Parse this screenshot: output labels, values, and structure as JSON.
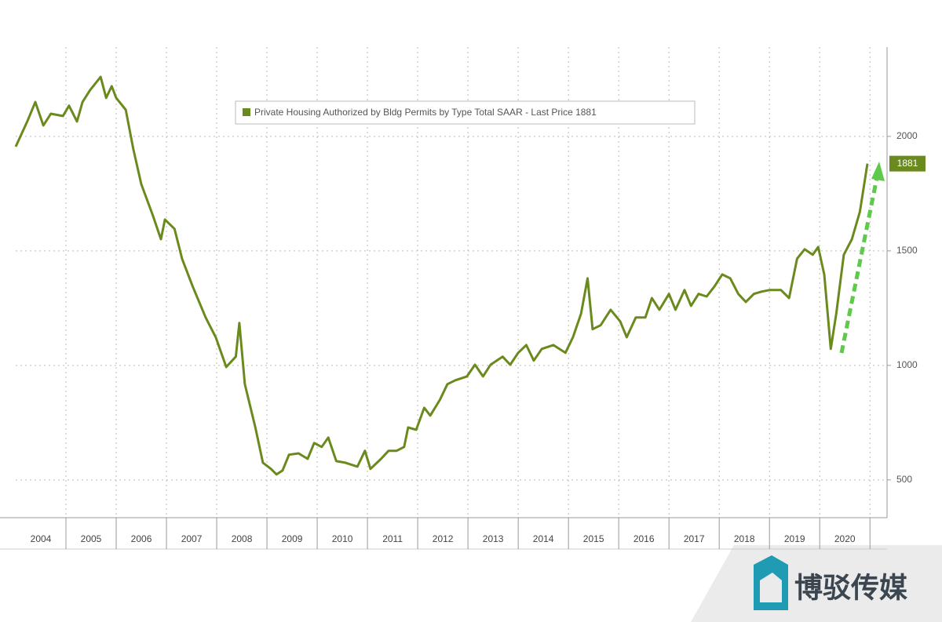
{
  "chart_data": {
    "type": "line",
    "legend": "Private Housing Authorized by Bldg Permits by Type Total SAAR - Last Price 1881",
    "x": [
      2004.0,
      2004.23,
      2004.39,
      2004.55,
      2004.7,
      2004.94,
      2005.06,
      2005.22,
      2005.33,
      2005.48,
      2005.69,
      2005.8,
      2005.91,
      2006.0,
      2006.19,
      2006.34,
      2006.5,
      2006.73,
      2006.89,
      2006.97,
      2007.16,
      2007.31,
      2007.52,
      2007.78,
      2007.98,
      2008.19,
      2008.38,
      2008.45,
      2008.56,
      2008.77,
      2008.92,
      2009.08,
      2009.19,
      2009.31,
      2009.44,
      2009.63,
      2009.81,
      2009.94,
      2010.09,
      2010.22,
      2010.38,
      2010.56,
      2010.8,
      2010.95,
      2011.06,
      2011.27,
      2011.42,
      2011.58,
      2011.73,
      2011.81,
      2011.97,
      2012.13,
      2012.25,
      2012.44,
      2012.59,
      2012.75,
      2012.98,
      2013.14,
      2013.3,
      2013.45,
      2013.69,
      2013.84,
      2014.0,
      2014.16,
      2014.31,
      2014.47,
      2014.7,
      2014.94,
      2015.09,
      2015.25,
      2015.38,
      2015.48,
      2015.64,
      2015.84,
      2016.03,
      2016.16,
      2016.34,
      2016.53,
      2016.66,
      2016.81,
      2017.0,
      2017.13,
      2017.31,
      2017.44,
      2017.59,
      2017.75,
      2017.91,
      2018.06,
      2018.22,
      2018.38,
      2018.53,
      2018.69,
      2018.84,
      2019.0,
      2019.23,
      2019.39,
      2019.55,
      2019.7,
      2019.86,
      2019.97,
      2020.09,
      2020.22,
      2020.33,
      2020.48,
      2020.64,
      2020.8,
      2020.95
    ],
    "series": [
      {
        "name": "Private Housing Authorized by Bldg Permits by Type Total SAAR",
        "color": "#6b8a1e",
        "values": [
          1955,
          2065,
          2150,
          2048,
          2099,
          2089,
          2134,
          2065,
          2150,
          2202,
          2260,
          2168,
          2219,
          2168,
          2116,
          1945,
          1791,
          1654,
          1551,
          1637,
          1596,
          1466,
          1346,
          1209,
          1123,
          993,
          1038,
          1185,
          918,
          729,
          575,
          548,
          524,
          541,
          610,
          616,
          592,
          661,
          644,
          685,
          582,
          575,
          558,
          627,
          548,
          592,
          627,
          627,
          644,
          729,
          719,
          815,
          781,
          849,
          918,
          935,
          952,
          1003,
          952,
          1003,
          1038,
          1003,
          1055,
          1089,
          1021,
          1072,
          1089,
          1055,
          1123,
          1226,
          1380,
          1158,
          1175,
          1243,
          1192,
          1123,
          1209,
          1209,
          1294,
          1243,
          1312,
          1243,
          1329,
          1260,
          1312,
          1301,
          1346,
          1397,
          1380,
          1312,
          1277,
          1312,
          1322,
          1329,
          1329,
          1294,
          1466,
          1507,
          1483,
          1517,
          1397,
          1072,
          1226,
          1483,
          1551,
          1671,
          1881
        ]
      }
    ],
    "xlim": [
      2004,
      2021.34
    ],
    "xticks": [
      {
        "value": 2004.5,
        "label": "2004"
      },
      {
        "value": 2005.5,
        "label": "2005"
      },
      {
        "value": 2006.5,
        "label": "2006"
      },
      {
        "value": 2007.5,
        "label": "2007"
      },
      {
        "value": 2008.5,
        "label": "2008"
      },
      {
        "value": 2009.5,
        "label": "2009"
      },
      {
        "value": 2010.5,
        "label": "2010"
      },
      {
        "value": 2011.5,
        "label": "2011"
      },
      {
        "value": 2012.5,
        "label": "2012"
      },
      {
        "value": 2013.5,
        "label": "2013"
      },
      {
        "value": 2014.5,
        "label": "2014"
      },
      {
        "value": 2015.5,
        "label": "2015"
      },
      {
        "value": 2016.5,
        "label": "2016"
      },
      {
        "value": 2017.5,
        "label": "2017"
      },
      {
        "value": 2018.5,
        "label": "2018"
      },
      {
        "value": 2019.5,
        "label": "2019"
      },
      {
        "value": 2020.5,
        "label": "2020"
      }
    ],
    "ylim": [
      335,
      2390
    ],
    "yticks": [
      500,
      1000,
      1500,
      2000
    ],
    "grid": true
  },
  "watermark": "博驳传媒"
}
